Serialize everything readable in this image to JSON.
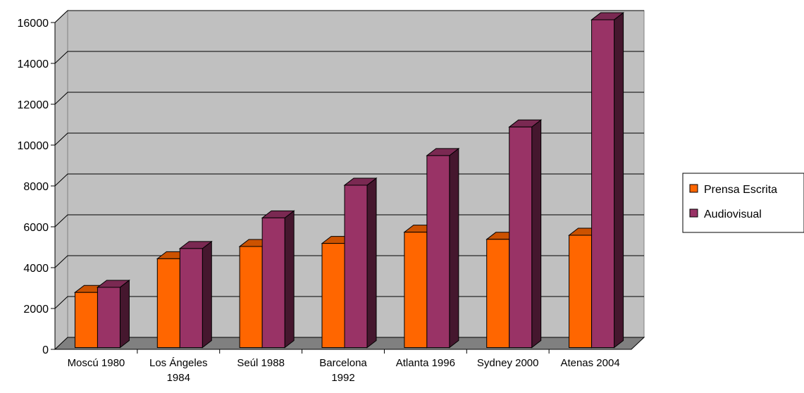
{
  "chart_data": {
    "type": "bar",
    "categories": [
      [
        "Moscú 1980"
      ],
      [
        "Los Ángeles",
        "1984"
      ],
      [
        "Seúl 1988"
      ],
      [
        "Barcelona",
        "1992"
      ],
      [
        "Atlanta 1996"
      ],
      [
        "Sydney 2000"
      ],
      [
        "Atenas 2004"
      ]
    ],
    "series": [
      {
        "name": "Prensa Escrita",
        "color": "#ff6600",
        "values": [
          2700,
          4350,
          4950,
          5100,
          5650,
          5300,
          5500
        ]
      },
      {
        "name": "Audiovisual",
        "color": "#993366",
        "values": [
          2950,
          4850,
          6350,
          7950,
          9400,
          10800,
          16050
        ]
      }
    ],
    "ylim": [
      0,
      16000
    ],
    "yticks": [
      0,
      2000,
      4000,
      6000,
      8000,
      10000,
      12000,
      14000,
      16000
    ],
    "grid": true,
    "legend_position": "right",
    "style": "3d-clustered-column",
    "wall_color": "#c0c0c0",
    "floor_color": "#808080"
  }
}
